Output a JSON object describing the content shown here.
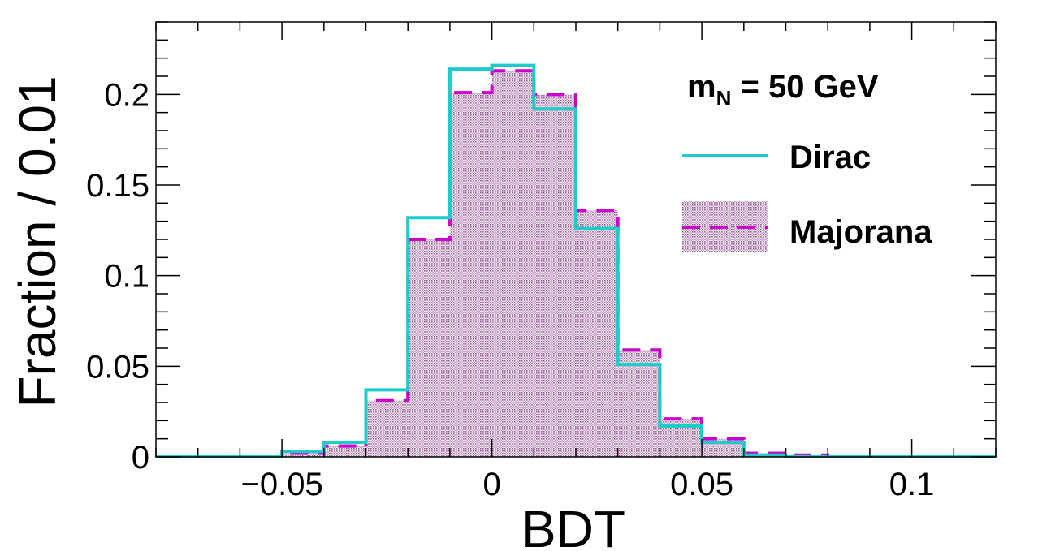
{
  "chart_data": {
    "type": "histogram",
    "xlabel": "BDT",
    "ylabel": "Fraction / 0.01",
    "xlim": [
      -0.08,
      0.12
    ],
    "ylim": [
      0,
      0.24
    ],
    "x_ticks": [
      {
        "value": -0.05,
        "label": "−0.05"
      },
      {
        "value": 0,
        "label": "0"
      },
      {
        "value": 0.05,
        "label": "0.05"
      },
      {
        "value": 0.1,
        "label": "0.1"
      }
    ],
    "y_ticks": [
      {
        "value": 0,
        "label": "0"
      },
      {
        "value": 0.05,
        "label": "0.05"
      },
      {
        "value": 0.1,
        "label": "0.1"
      },
      {
        "value": 0.15,
        "label": "0.15"
      },
      {
        "value": 0.2,
        "label": "0.2"
      }
    ],
    "bin_edges": [
      -0.08,
      -0.07,
      -0.06,
      -0.05,
      -0.04,
      -0.03,
      -0.02,
      -0.01,
      0.0,
      0.01,
      0.02,
      0.03,
      0.04,
      0.05,
      0.06,
      0.07,
      0.08,
      0.09,
      0.1,
      0.11,
      0.12
    ],
    "legend_title": {
      "main": "m",
      "sub": "N",
      "rest": " = 50 GeV"
    },
    "legend_position": "top-right",
    "series": [
      {
        "name": "Majorana",
        "style": "dashed-hatched",
        "color": "#cc00cc",
        "fill_color": "#9e5a9e",
        "values": [
          0,
          0,
          0,
          0.002,
          0.006,
          0.031,
          0.12,
          0.201,
          0.213,
          0.2,
          0.136,
          0.059,
          0.021,
          0.01,
          0.002,
          0.001,
          0,
          0,
          0,
          0
        ]
      },
      {
        "name": "Dirac",
        "style": "solid",
        "color": "#1ecbcb",
        "values": [
          0,
          0,
          0,
          0.003,
          0.008,
          0.037,
          0.132,
          0.214,
          0.216,
          0.192,
          0.126,
          0.051,
          0.017,
          0.008,
          0.001,
          0,
          0,
          0,
          0,
          0
        ]
      }
    ]
  }
}
